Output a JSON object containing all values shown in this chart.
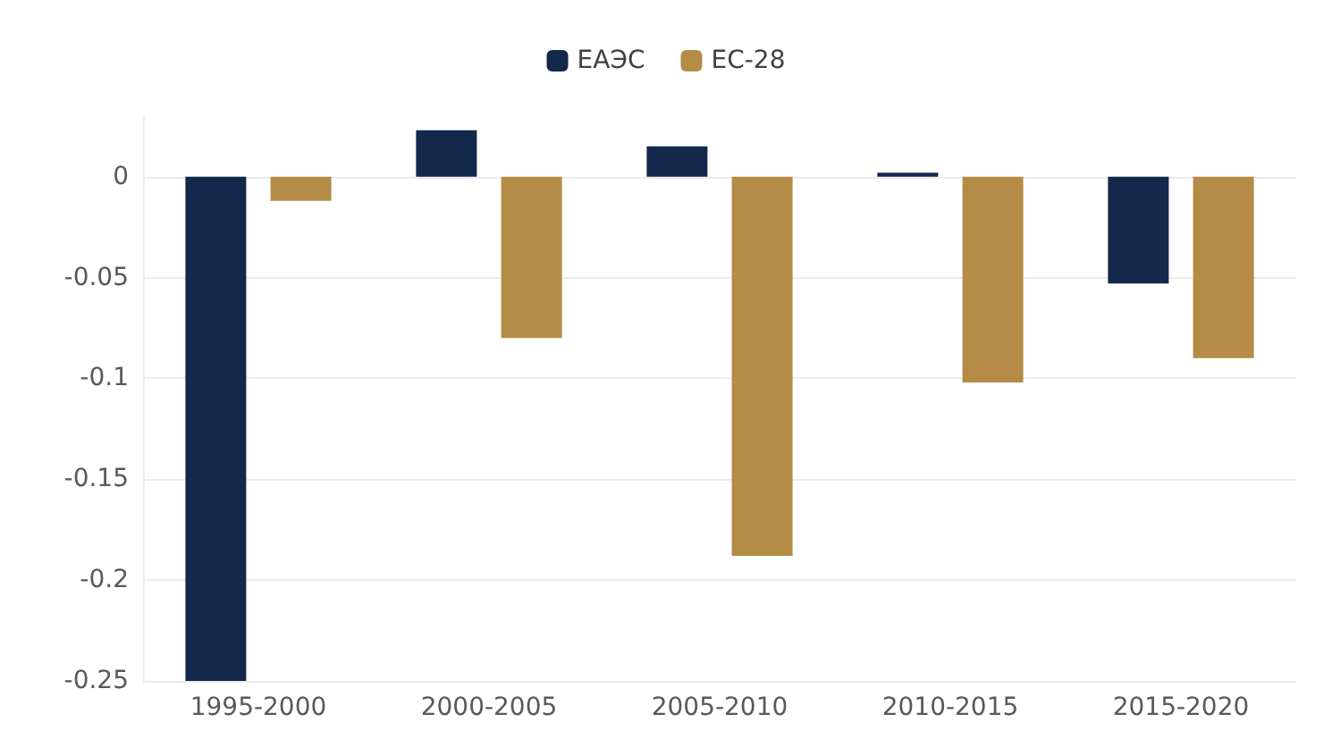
{
  "chart_data": {
    "type": "bar",
    "categories": [
      "1995-2000",
      "2000-2005",
      "2005-2010",
      "2010-2015",
      "2015-2020"
    ],
    "series": [
      {
        "name": "ЕАЭС",
        "color": "#14284b",
        "values": [
          -0.25,
          0.023,
          0.015,
          0.002,
          -0.053
        ]
      },
      {
        "name": "ЕС-28",
        "color": "#b48c46",
        "values": [
          -0.012,
          -0.08,
          -0.188,
          -0.102,
          -0.09
        ]
      }
    ],
    "ylim": [
      -0.25,
      0.03
    ],
    "yticks": [
      -0.25,
      -0.2,
      -0.15,
      -0.1,
      -0.05,
      0
    ],
    "grid": "y",
    "legend": "top"
  }
}
